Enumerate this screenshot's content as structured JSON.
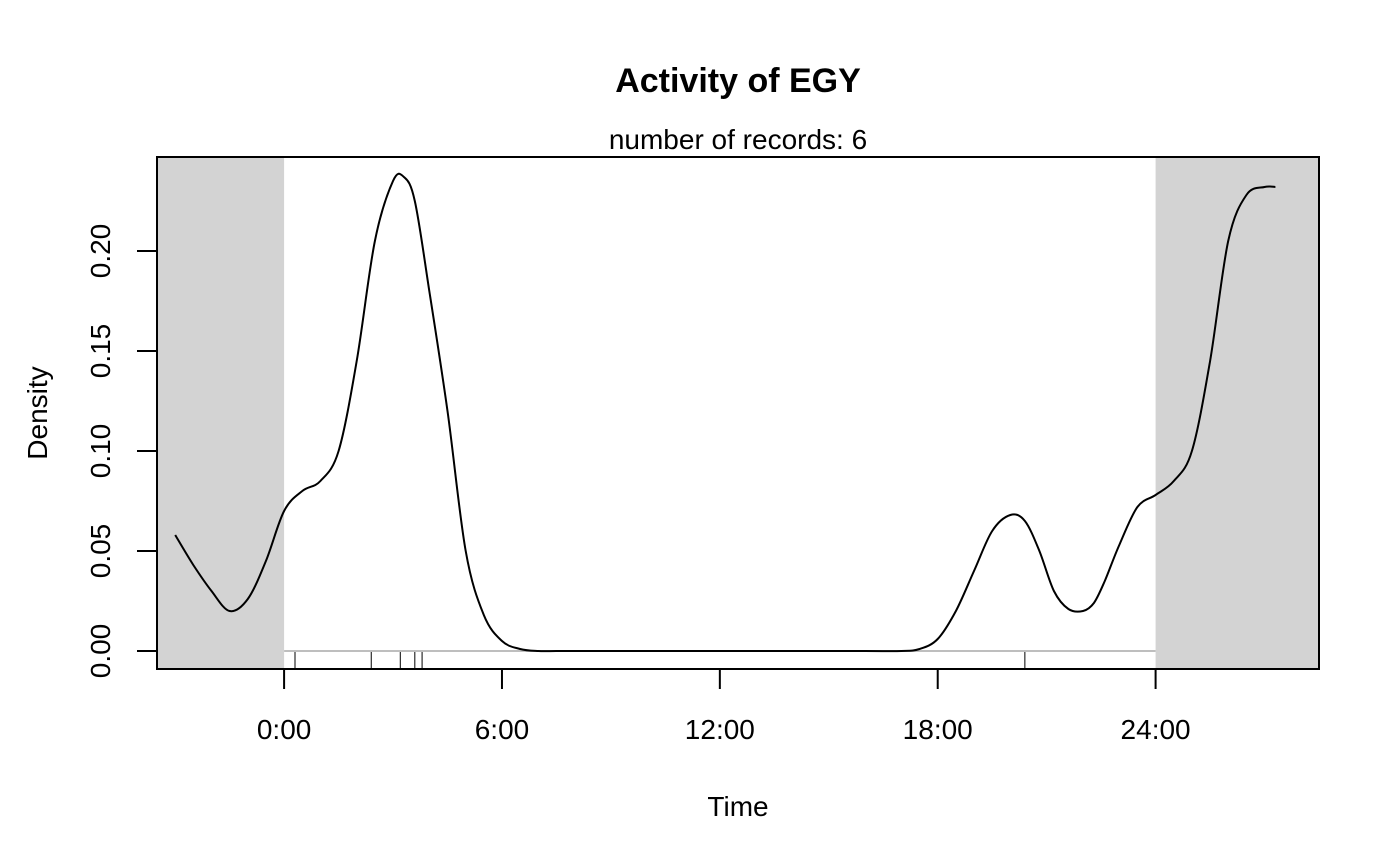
{
  "chart_data": {
    "type": "line",
    "title": "Activity of EGY",
    "subtitle": "number of records: 6",
    "xlabel": "Time",
    "ylabel": "Density",
    "xlim": [
      -3.5,
      28.5
    ],
    "ylim": [
      -0.009,
      0.247
    ],
    "x_ticks": [
      {
        "value": 0,
        "label": "0:00"
      },
      {
        "value": 6,
        "label": "6:00"
      },
      {
        "value": 12,
        "label": "12:00"
      },
      {
        "value": 18,
        "label": "18:00"
      },
      {
        "value": 24,
        "label": "24:00"
      }
    ],
    "y_ticks": [
      {
        "value": 0.0,
        "label": "0.00"
      },
      {
        "value": 0.05,
        "label": "0.05"
      },
      {
        "value": 0.1,
        "label": "0.10"
      },
      {
        "value": 0.15,
        "label": "0.15"
      },
      {
        "value": 0.2,
        "label": "0.20"
      }
    ],
    "shaded_ranges": [
      [
        -3.5,
        0
      ],
      [
        24,
        28.5
      ]
    ],
    "shade_color": "#d3d3d3",
    "baseline_color": "#bebebe",
    "records": [
      0.3,
      2.4,
      3.2,
      3.6,
      3.8,
      20.4
    ],
    "series": [
      {
        "x": [
          -3.0,
          -2.5,
          -2.0,
          -1.5,
          -1.0,
          -0.5,
          0.0,
          0.5,
          1.0,
          1.5,
          2.0,
          2.5,
          3.0,
          3.3,
          3.6,
          4.0,
          4.5,
          5.0,
          5.5,
          6.0,
          6.5,
          7.0,
          7.5,
          8.0,
          10.0,
          12.0,
          14.0,
          16.0,
          17.0,
          17.5,
          18.0,
          18.5,
          19.0,
          19.5,
          20.0,
          20.4,
          20.8,
          21.2,
          21.6,
          22.0,
          22.3,
          22.6,
          23.0,
          23.5,
          24.0,
          24.5,
          25.0,
          25.5,
          26.0,
          26.5,
          27.0,
          27.3
        ],
        "y": [
          0.058,
          0.043,
          0.03,
          0.02,
          0.026,
          0.045,
          0.07,
          0.08,
          0.085,
          0.1,
          0.145,
          0.205,
          0.235,
          0.237,
          0.225,
          0.18,
          0.12,
          0.05,
          0.018,
          0.005,
          0.001,
          0.0,
          0.0,
          0.0,
          0.0,
          0.0,
          0.0,
          0.0,
          0.0,
          0.001,
          0.006,
          0.02,
          0.04,
          0.06,
          0.068,
          0.065,
          0.05,
          0.03,
          0.021,
          0.02,
          0.024,
          0.035,
          0.053,
          0.072,
          0.078,
          0.085,
          0.1,
          0.145,
          0.205,
          0.228,
          0.232,
          0.232
        ]
      }
    ]
  }
}
